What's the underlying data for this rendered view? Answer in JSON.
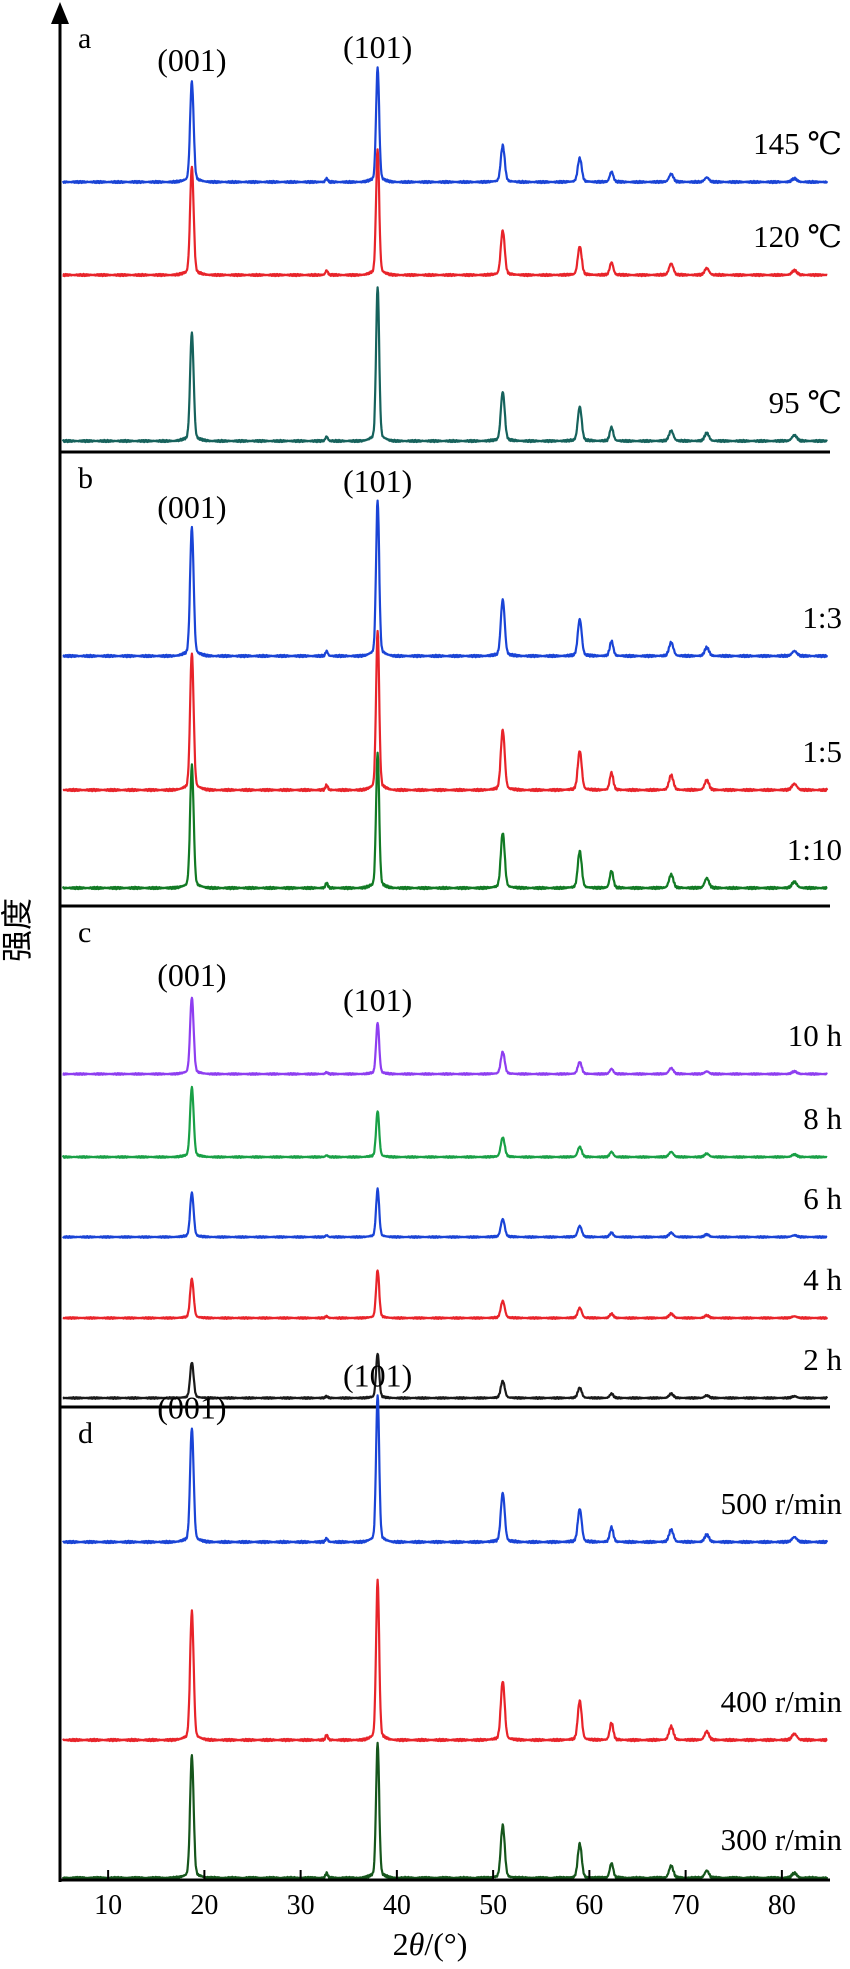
{
  "chart_data": {
    "type": "line",
    "xlabel_parts": [
      "2",
      "θ",
      "/(°)"
    ],
    "ylabel": "强度",
    "xlim": [
      5,
      85
    ],
    "xticks": [
      10,
      20,
      30,
      40,
      50,
      60,
      70,
      80
    ],
    "xtick_labels": [
      "10",
      "20",
      "30",
      "40",
      "50",
      "60",
      "70",
      "80"
    ],
    "peak_positions": [
      18.7,
      32.7,
      38.0,
      51.0,
      59.0,
      62.3,
      68.5,
      72.2,
      81.3
    ],
    "panels": [
      {
        "panel_label": "a",
        "peak_labels": [
          {
            "text": "(001)",
            "x": 18.7
          },
          {
            "text": "(101)",
            "x": 38.0
          }
        ],
        "series": [
          {
            "name": "145 ℃",
            "color": "#1a44d6",
            "intensities": [
              0.88,
              0.03,
              1.0,
              0.32,
              0.21,
              0.09,
              0.07,
              0.04,
              0.03
            ]
          },
          {
            "name": "120 ℃",
            "color": "#e8242a",
            "intensities": [
              0.95,
              0.04,
              1.1,
              0.39,
              0.25,
              0.11,
              0.1,
              0.06,
              0.04
            ]
          },
          {
            "name": "95 ℃",
            "color": "#16625c",
            "intensities": [
              0.95,
              0.04,
              1.35,
              0.43,
              0.3,
              0.12,
              0.09,
              0.07,
              0.05
            ]
          }
        ]
      },
      {
        "panel_label": "b",
        "peak_labels": [
          {
            "text": "(001)",
            "x": 18.7
          },
          {
            "text": "(101)",
            "x": 38.0
          }
        ],
        "series": [
          {
            "name": "1:3",
            "color": "#1a44d6",
            "intensities": [
              1.05,
              0.04,
              1.27,
              0.46,
              0.3,
              0.12,
              0.11,
              0.07,
              0.04
            ]
          },
          {
            "name": "1:5",
            "color": "#e8242a",
            "intensities": [
              1.12,
              0.04,
              1.3,
              0.49,
              0.32,
              0.14,
              0.12,
              0.08,
              0.05
            ]
          },
          {
            "name": "1:10",
            "color": "#127a24",
            "intensities": [
              1.0,
              0.04,
              1.1,
              0.45,
              0.3,
              0.14,
              0.11,
              0.08,
              0.05
            ]
          }
        ]
      },
      {
        "panel_label": "c",
        "peak_labels": [
          {
            "text": "(001)",
            "x": 18.7
          },
          {
            "text": "(101)",
            "x": 38.0
          }
        ],
        "series": [
          {
            "name": "10 h",
            "color": "#8e3ef0",
            "intensities": [
              0.9,
              0.02,
              0.6,
              0.26,
              0.14,
              0.06,
              0.07,
              0.03,
              0.03
            ]
          },
          {
            "name": "8 h",
            "color": "#19a046",
            "intensities": [
              0.82,
              0.02,
              0.54,
              0.23,
              0.12,
              0.06,
              0.06,
              0.04,
              0.03
            ]
          },
          {
            "name": "6 h",
            "color": "#1a44d6",
            "intensities": [
              0.52,
              0.02,
              0.56,
              0.21,
              0.13,
              0.05,
              0.05,
              0.03,
              0.02
            ]
          },
          {
            "name": "4 h",
            "color": "#e8242a",
            "intensities": [
              0.46,
              0.02,
              0.56,
              0.2,
              0.12,
              0.05,
              0.05,
              0.03,
              0.02
            ]
          },
          {
            "name": "2 h",
            "color": "#1a1a1a",
            "intensities": [
              0.42,
              0.02,
              0.52,
              0.2,
              0.12,
              0.05,
              0.05,
              0.03,
              0.02
            ]
          }
        ]
      },
      {
        "panel_label": "d",
        "peak_labels": [
          {
            "text": "(001)",
            "x": 18.7
          },
          {
            "text": "(101)",
            "x": 38.0
          }
        ],
        "series": [
          {
            "name": "500 r/min",
            "color": "#1a44d6",
            "intensities": [
              0.93,
              0.03,
              1.2,
              0.4,
              0.27,
              0.12,
              0.1,
              0.06,
              0.04
            ]
          },
          {
            "name": "400 r/min",
            "color": "#e8242a",
            "intensities": [
              1.05,
              0.04,
              1.3,
              0.48,
              0.32,
              0.14,
              0.11,
              0.07,
              0.05
            ]
          },
          {
            "name": "300 r/min",
            "color": "#16561c",
            "intensities": [
              1.0,
              0.04,
              1.1,
              0.43,
              0.28,
              0.12,
              0.1,
              0.06,
              0.04
            ]
          }
        ]
      }
    ]
  }
}
